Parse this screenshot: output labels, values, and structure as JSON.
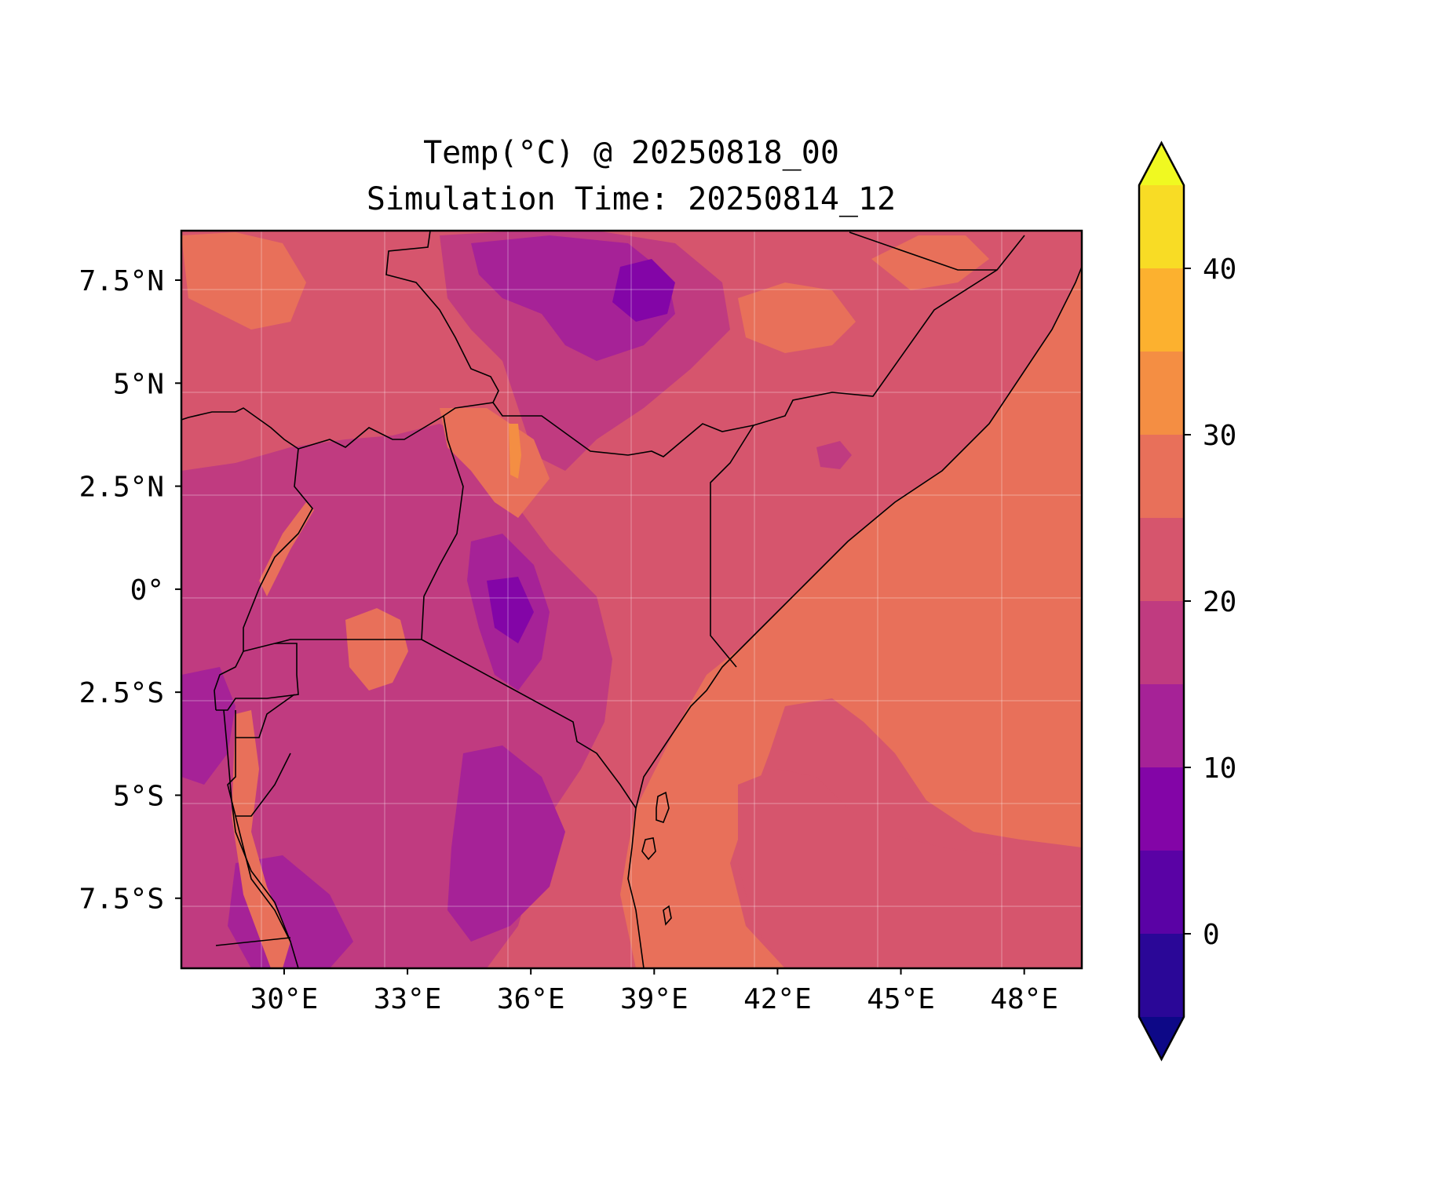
{
  "title": {
    "line1": "Temp(°C) @ 20250818_00",
    "line2": "Simulation Time: 20250814_12"
  },
  "map": {
    "region": "East Africa",
    "lon_range": [
      27.5,
      49.4
    ],
    "lat_range": [
      -9.2,
      8.7
    ],
    "x_ticks": [
      {
        "value": 30,
        "label": "30°E"
      },
      {
        "value": 33,
        "label": "33°E"
      },
      {
        "value": 36,
        "label": "36°E"
      },
      {
        "value": 39,
        "label": "39°E"
      },
      {
        "value": 42,
        "label": "42°E"
      },
      {
        "value": 45,
        "label": "45°E"
      },
      {
        "value": 48,
        "label": "48°E"
      }
    ],
    "y_ticks": [
      {
        "value": 7.5,
        "label": "7.5°N"
      },
      {
        "value": 5,
        "label": "5°N"
      },
      {
        "value": 2.5,
        "label": "2.5°N"
      },
      {
        "value": 0,
        "label": "0°"
      },
      {
        "value": -2.5,
        "label": "2.5°S"
      },
      {
        "value": -5,
        "label": "5°S"
      },
      {
        "value": -7.5,
        "label": "7.5°S"
      }
    ],
    "grid": true
  },
  "colorbar": {
    "levels": [
      -5,
      0,
      5,
      10,
      15,
      20,
      25,
      30,
      35,
      40,
      45
    ],
    "colors": [
      "#2a0797",
      "#5a02a5",
      "#8305a7",
      "#a62297",
      "#c03b80",
      "#d6556d",
      "#e8705a",
      "#f48e43",
      "#fcb12f",
      "#f8dc25"
    ],
    "under_color": "#0d0887",
    "over_color": "#f0f921",
    "ticks": [
      {
        "value": 0,
        "label": "0"
      },
      {
        "value": 10,
        "label": "10"
      },
      {
        "value": 20,
        "label": "20"
      },
      {
        "value": 30,
        "label": "30"
      },
      {
        "value": 40,
        "label": "40"
      }
    ]
  }
}
